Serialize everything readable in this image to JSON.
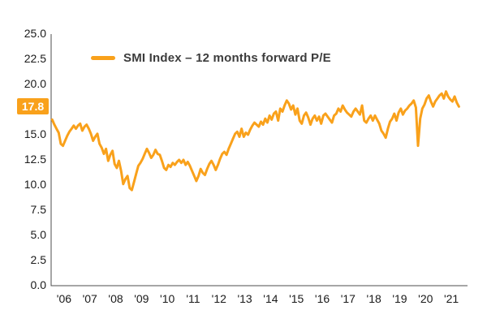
{
  "colors": {
    "accent": "#F9A11B",
    "axis": "#4d4d4d",
    "text": "#1a1a1a"
  },
  "chart_data": {
    "type": "line",
    "title": "",
    "legend_label": "SMI Index – 12 months forward P/E",
    "legend_position": "top-left",
    "grid": false,
    "xlim": [
      2006,
      2022
    ],
    "ylim": [
      0,
      25
    ],
    "y_ticks": [
      25,
      22.5,
      20,
      15,
      12.5,
      10,
      7.5,
      5,
      2.5,
      0
    ],
    "y_tick_labels": [
      "25.0",
      "22.5",
      "20.0",
      "15.0",
      "12.5",
      "10.0",
      "7.5",
      "5.0",
      "2.5",
      "0.0"
    ],
    "x_tick_years": [
      2006,
      2007,
      2008,
      2009,
      2010,
      2011,
      2012,
      2013,
      2014,
      2015,
      2016,
      2017,
      2018,
      2019,
      2020,
      2021
    ],
    "x_tick_labels": [
      "'06",
      "'07",
      "'08",
      "'09",
      "'10",
      "'11",
      "'12",
      "'13",
      "'14",
      "'15",
      "'16",
      "'17",
      "'18",
      "'19",
      "'20",
      "'21"
    ],
    "highlight": {
      "label": "17.8",
      "value": 17.8
    },
    "series": [
      {
        "name": "SMI Index – 12 months forward P/E",
        "color": "#F9A11B",
        "start_year": 2006,
        "frequency": "monthly",
        "values": [
          16.5,
          16.0,
          15.6,
          15.2,
          14.1,
          13.9,
          14.4,
          14.9,
          15.3,
          15.6,
          15.9,
          15.6,
          15.9,
          16.1,
          15.4,
          15.8,
          16.0,
          15.6,
          15.1,
          14.4,
          14.8,
          15.1,
          14.1,
          13.7,
          13.1,
          13.6,
          12.4,
          13.0,
          13.4,
          12.1,
          11.7,
          12.4,
          11.4,
          10.1,
          10.6,
          10.9,
          9.7,
          9.5,
          10.3,
          11.1,
          11.9,
          12.2,
          12.6,
          13.1,
          13.6,
          13.2,
          12.7,
          13.0,
          13.5,
          13.1,
          13.0,
          12.4,
          11.7,
          11.5,
          12.0,
          11.8,
          12.2,
          12.0,
          12.3,
          12.5,
          12.2,
          12.5,
          12.0,
          12.3,
          11.9,
          11.4,
          10.9,
          10.4,
          10.9,
          11.6,
          11.2,
          11.0,
          11.6,
          12.1,
          12.4,
          12.0,
          11.5,
          12.0,
          12.6,
          13.1,
          13.3,
          13.0,
          13.6,
          14.1,
          14.6,
          15.1,
          15.3,
          14.8,
          15.6,
          14.8,
          15.2,
          15.0,
          15.5,
          15.9,
          16.2,
          16.0,
          15.8,
          16.3,
          16.0,
          16.6,
          16.2,
          16.9,
          16.5,
          17.1,
          17.3,
          16.4,
          17.6,
          17.3,
          17.9,
          18.4,
          18.1,
          17.5,
          17.9,
          17.0,
          17.6,
          16.4,
          16.1,
          16.9,
          17.2,
          16.7,
          16.0,
          16.6,
          16.9,
          16.4,
          16.8,
          16.1,
          16.9,
          17.1,
          16.8,
          16.5,
          16.2,
          16.9,
          17.1,
          17.6,
          17.3,
          17.9,
          17.5,
          17.2,
          17.0,
          16.8,
          17.3,
          17.6,
          17.3,
          17.0,
          17.9,
          16.4,
          16.2,
          16.6,
          16.9,
          16.4,
          16.9,
          16.5,
          16.1,
          15.4,
          15.1,
          14.7,
          15.6,
          16.3,
          16.6,
          17.1,
          16.4,
          17.2,
          17.6,
          17.0,
          17.4,
          17.6,
          17.9,
          18.1,
          18.4,
          17.7,
          13.9,
          16.6,
          17.6,
          18.0,
          18.6,
          18.9,
          18.3,
          17.8,
          18.3,
          18.6,
          18.9,
          19.1,
          18.6,
          19.3,
          18.8,
          18.5,
          18.3,
          18.8,
          18.2,
          17.8
        ]
      }
    ]
  }
}
